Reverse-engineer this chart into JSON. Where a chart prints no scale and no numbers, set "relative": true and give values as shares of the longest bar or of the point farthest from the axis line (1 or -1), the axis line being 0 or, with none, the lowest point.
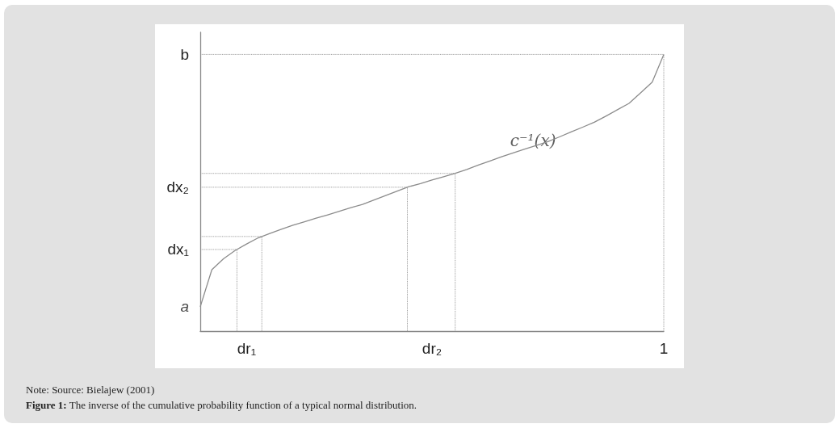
{
  "chart_data": {
    "type": "line",
    "relative": true,
    "marker": "none",
    "line_style": "solid",
    "grid": false,
    "legend": false,
    "categories": [
      null,
      null,
      null,
      null,
      "dr₁",
      null,
      null,
      null,
      null,
      null,
      null,
      null,
      null,
      null,
      null,
      null,
      null,
      null,
      null,
      null,
      "dr₂",
      null,
      null,
      null,
      null,
      null,
      null,
      null,
      null,
      null,
      null,
      null,
      null,
      null,
      null,
      null,
      null,
      null,
      null,
      null,
      "1"
    ],
    "series": [
      {
        "name": "c⁻¹(x)",
        "color": "#8c8c8c",
        "values": [
          0.088,
          0.222,
          0.261,
          0.291,
          0.315,
          0.337,
          0.353,
          0.368,
          0.383,
          0.395,
          0.408,
          0.42,
          0.433,
          0.446,
          0.458,
          0.474,
          0.49,
          0.506,
          0.522,
          0.533,
          0.546,
          0.558,
          0.57,
          0.584,
          0.6,
          0.615,
          0.63,
          0.644,
          0.658,
          0.671,
          0.685,
          0.702,
          0.72,
          0.737,
          0.755,
          0.777,
          0.8,
          0.823,
          0.861,
          0.9,
          1
        ]
      }
    ],
    "ref_lines": [
      {
        "axis": "y",
        "value": 0.295,
        "label": "dx₁",
        "line_style": "dotted",
        "color": "#8c8c8c"
      },
      {
        "axis": "y",
        "value": 0.342,
        "line_style": "dotted",
        "color": "#8c8c8c"
      },
      {
        "axis": "y",
        "value": 0.52,
        "label": "dx₂",
        "line_style": "dotted",
        "color": "#8c8c8c"
      },
      {
        "axis": "y",
        "value": 0.57,
        "line_style": "dotted",
        "color": "#8c8c8c"
      },
      {
        "axis": "y",
        "value": 1,
        "label": "b",
        "line_style": "dotted",
        "color": "#8c8c8c"
      }
    ],
    "annotations": [
      "a",
      "Note: Source: Bielajew (2001)",
      "Figure 1: The inverse of the cumulative probability function of a typical normal distribution."
    ]
  }
}
